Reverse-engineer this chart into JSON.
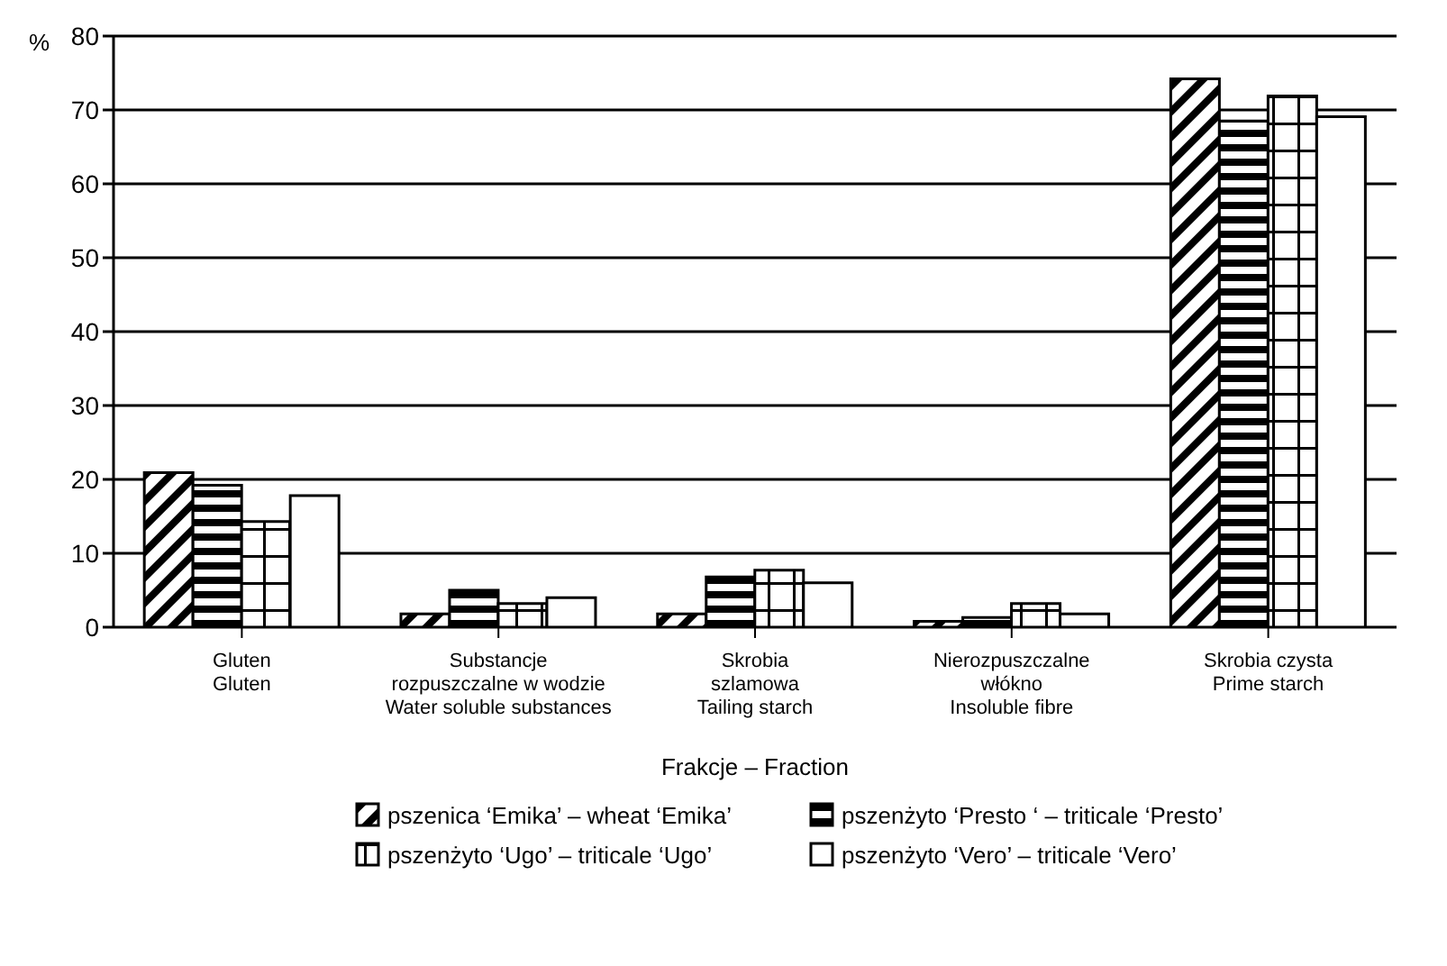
{
  "chart_data": {
    "type": "bar",
    "xlabel": "Frakcje – Fraction",
    "ylabel": "%",
    "categories": [
      "Gluten\nGluten",
      "Substancje\nrozpuszczalne w wodzie\nWater soluble substances",
      "Skrobia\nszlamowa\nTailing starch",
      "Nierozpuszczalne\nwłókno\nInsoluble fibre",
      "Skrobia czysta\nPrime starch"
    ],
    "series": [
      {
        "name": "pszenica ‘Emika’ – wheat ‘Emika’",
        "color": "#000000",
        "values": [
          20.9,
          1.8,
          1.8,
          0.8,
          74.2
        ]
      },
      {
        "name": "pszenżyto ‘Presto ‘ – triticale ‘Presto’",
        "color": "#000000",
        "values": [
          19.2,
          5.0,
          6.8,
          1.3,
          68.5
        ]
      },
      {
        "name": "pszenżyto ‘Ugo’ – triticale ‘Ugo’",
        "color": "#000000",
        "values": [
          14.3,
          3.2,
          7.7,
          3.2,
          71.9
        ]
      },
      {
        "name": "pszenżyto ‘Vero’ – triticale ‘Vero’",
        "color": "#000000",
        "values": [
          17.8,
          4.0,
          6.0,
          1.8,
          69.1
        ]
      }
    ],
    "ylim": [
      0,
      80
    ],
    "yticks": [
      0,
      10,
      20,
      30,
      40,
      50,
      60,
      70,
      80
    ],
    "grid": "y",
    "legend": "bottom"
  }
}
